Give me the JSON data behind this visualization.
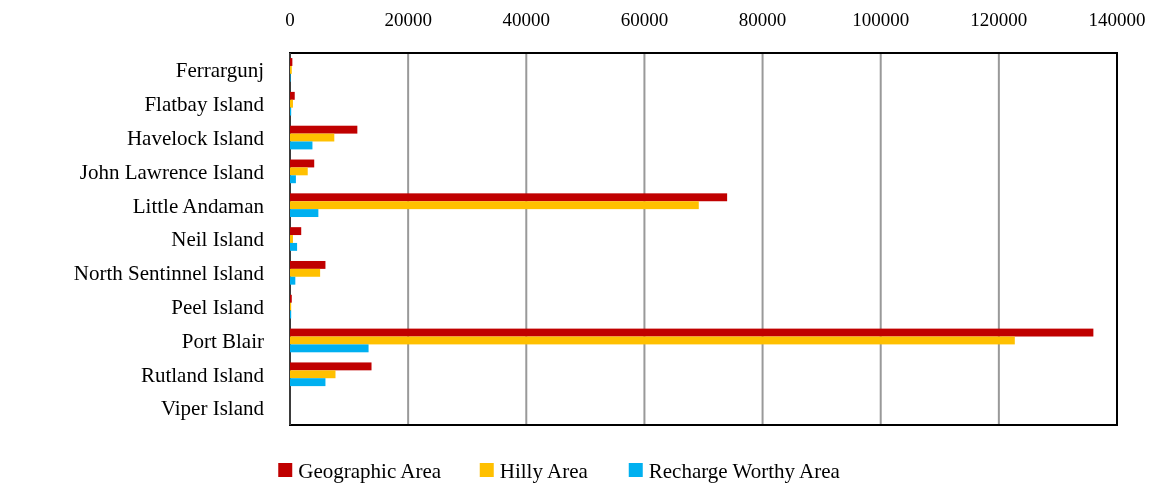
{
  "chart_data": {
    "type": "bar",
    "orientation": "horizontal",
    "categories": [
      "Ferrargunj",
      "Flatbay Island",
      "Havelock Island",
      "John Lawrence Island",
      "Little Andaman",
      "Neil Island",
      "North Sentinnel Island",
      "Peel Island",
      "Port Blair",
      "Rutland Island",
      "Viper Island"
    ],
    "series": [
      {
        "name": "Geographic Area",
        "color": "#c00000",
        "values": [
          400,
          800,
          11400,
          4100,
          74000,
          1900,
          6000,
          300,
          136000,
          13800,
          0
        ]
      },
      {
        "name": "Hilly Area",
        "color": "#ffc000",
        "values": [
          300,
          500,
          7500,
          3000,
          69200,
          500,
          5100,
          200,
          122700,
          7700,
          0
        ]
      },
      {
        "name": "Recharge Worthy Area",
        "color": "#00b0f0",
        "values": [
          100,
          200,
          3800,
          1000,
          4800,
          1200,
          900,
          200,
          13300,
          6000,
          0
        ]
      }
    ],
    "xlim": [
      0,
      140000
    ],
    "xticks": [
      0,
      20000,
      40000,
      60000,
      80000,
      100000,
      120000,
      140000
    ],
    "grid": "x",
    "legend": "bottom"
  }
}
